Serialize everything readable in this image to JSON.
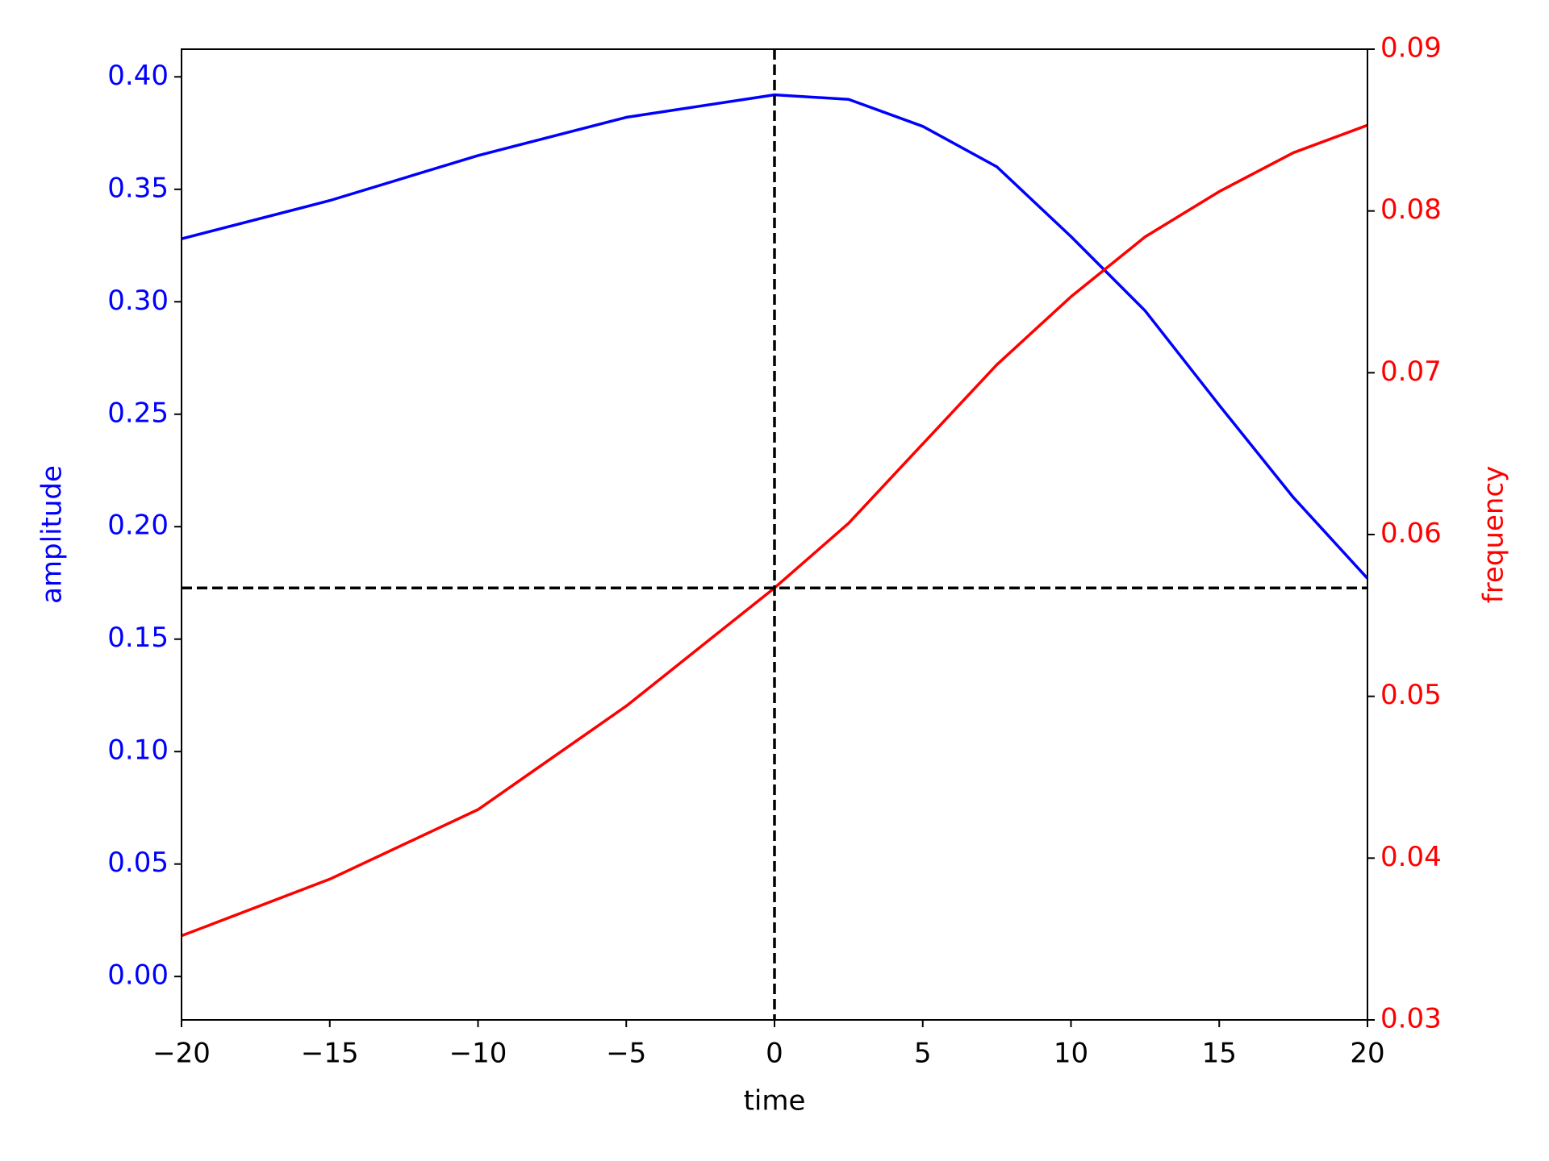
{
  "chart_data": {
    "type": "line",
    "x": [
      -20,
      -15,
      -10,
      -5,
      0,
      2.5,
      5,
      7.5,
      10,
      12.5,
      15,
      17.5,
      20
    ],
    "series": [
      {
        "name": "amplitude",
        "color": "#0000ff",
        "axis": "y",
        "values": [
          0.328,
          0.345,
          0.365,
          0.382,
          0.392,
          0.39,
          0.378,
          0.36,
          0.329,
          0.296,
          0.254,
          0.213,
          0.177
        ]
      },
      {
        "name": "frequency",
        "color": "#ff0000",
        "axis": "y2",
        "values": [
          0.0352,
          0.0387,
          0.043,
          0.0494,
          0.0567,
          0.0607,
          0.0656,
          0.0705,
          0.0747,
          0.0784,
          0.0812,
          0.0836,
          0.0853
        ]
      }
    ],
    "xlabel": "time",
    "ylabel": "amplitude",
    "y2label": "frequency",
    "xlim": [
      -20,
      20
    ],
    "xticks": [
      {
        "value": -20,
        "label": "−20"
      },
      {
        "value": -15,
        "label": "−15"
      },
      {
        "value": -10,
        "label": "−10"
      },
      {
        "value": -5,
        "label": "−5"
      },
      0,
      5,
      10,
      15,
      20
    ],
    "ylim": [
      -0.0193,
      0.4123
    ],
    "yticks": [
      {
        "value": 0,
        "label": "0.00"
      },
      0.05,
      {
        "value": 0.1,
        "label": "0.10"
      },
      0.15,
      {
        "value": 0.2,
        "label": "0.20"
      },
      0.25,
      {
        "value": 0.3,
        "label": "0.30"
      },
      0.35,
      {
        "value": 0.4,
        "label": "0.40"
      }
    ],
    "y2lim": [
      0.03,
      0.09
    ],
    "y2ticks": [
      0.03,
      0.04,
      0.05,
      0.06,
      0.07,
      0.08,
      0.09
    ],
    "reference_lines": [
      {
        "axis": "x",
        "value": 0
      },
      {
        "axis": "y2",
        "value": 0.0567
      }
    ]
  }
}
